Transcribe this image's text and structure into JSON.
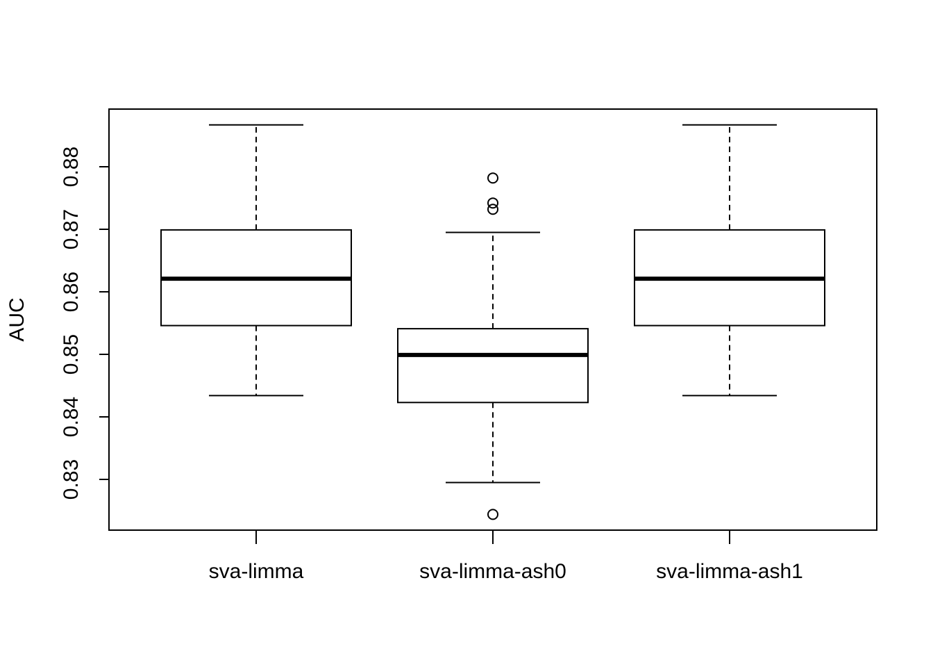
{
  "chart_data": {
    "type": "boxplot",
    "title": "",
    "xlabel": "",
    "ylabel": "AUC",
    "ylim": [
      0.822,
      0.889
    ],
    "yticks": [
      "0.83",
      "0.84",
      "0.85",
      "0.86",
      "0.87",
      "0.88"
    ],
    "ytick_values": [
      0.83,
      0.84,
      0.85,
      0.86,
      0.87,
      0.88
    ],
    "categories": [
      "sva-limma",
      "sva-limma-ash0",
      "sva-limma-ash1"
    ],
    "grid": false,
    "boxes": [
      {
        "category": "sva-limma",
        "whisker_low": 0.8434,
        "q1": 0.8546,
        "median": 0.8621,
        "q3": 0.8699,
        "whisker_high": 0.8867,
        "outliers": []
      },
      {
        "category": "sva-limma-ash0",
        "whisker_low": 0.8295,
        "q1": 0.8423,
        "median": 0.8499,
        "q3": 0.8541,
        "whisker_high": 0.8695,
        "outliers": [
          0.8782,
          0.8742,
          0.8732,
          0.8244
        ]
      },
      {
        "category": "sva-limma-ash1",
        "whisker_low": 0.8434,
        "q1": 0.8546,
        "median": 0.8621,
        "q3": 0.8699,
        "whisker_high": 0.8867,
        "outliers": []
      }
    ]
  }
}
